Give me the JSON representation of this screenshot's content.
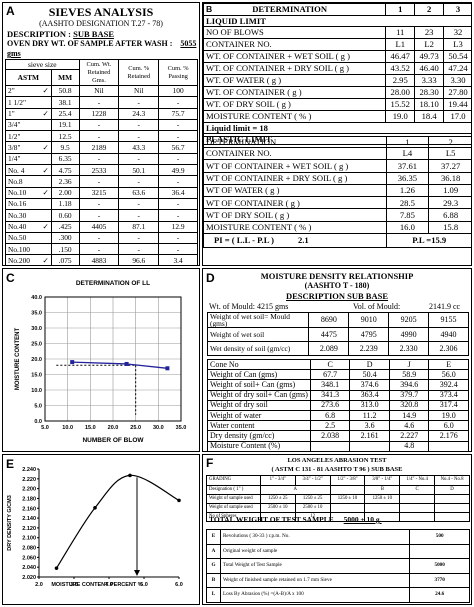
{
  "panel_a": {
    "label": "A",
    "title": "SIEVES ANALYSIS",
    "subtitle": "(AASHTO DESIGNATION T.27 - 78)",
    "description_label": "DESCRIPTION :",
    "description_value": "SUB BASE",
    "oven_label": "OVEN DRY WT. OF SAMPLE AFTER  WASH :",
    "oven_value": "5055",
    "oven_unit": "gms",
    "header_sieve": "sieve size",
    "headers": [
      "ASTM",
      "MM",
      "Cum. Wt. Retained Gms.",
      "Cum. % Retained",
      "Cum. % Passing"
    ],
    "check_mark": "✓",
    "rows": [
      {
        "astm": "2\"",
        "check": true,
        "mm": "50.8",
        "wt": "Nil",
        "ret": "Nil",
        "pass": "100"
      },
      {
        "astm": "1 1/2\"",
        "check": false,
        "mm": "38.1",
        "wt": "-",
        "ret": "-",
        "pass": "-"
      },
      {
        "astm": "1\"",
        "check": true,
        "mm": "25.4",
        "wt": "1228",
        "ret": "24.3",
        "pass": "75.7"
      },
      {
        "astm": "3/4\"",
        "check": false,
        "mm": "19.1",
        "wt": "-",
        "ret": "-",
        "pass": "-"
      },
      {
        "astm": "1/2\"",
        "check": false,
        "mm": "12.5",
        "wt": "-",
        "ret": "-",
        "pass": "-"
      },
      {
        "astm": "3/8\"",
        "check": true,
        "mm": "9.5",
        "wt": "2189",
        "ret": "43.3",
        "pass": "56.7"
      },
      {
        "astm": "1/4\"",
        "check": false,
        "mm": "6.35",
        "wt": "-",
        "ret": "-",
        "pass": "-"
      },
      {
        "astm": "No. 4",
        "check": true,
        "mm": "4.75",
        "wt": "2533",
        "ret": "50.1",
        "pass": "49.9"
      },
      {
        "astm": "No.8",
        "check": false,
        "mm": "2.36",
        "wt": "-",
        "ret": "-",
        "pass": "-"
      },
      {
        "astm": "No.10",
        "check": true,
        "mm": "2.00",
        "wt": "3215",
        "ret": "63.6",
        "pass": "36.4"
      },
      {
        "astm": "No.16",
        "check": false,
        "mm": "1.18",
        "wt": "-",
        "ret": "-",
        "pass": "-"
      },
      {
        "astm": "No.30",
        "check": false,
        "mm": "0.60",
        "wt": "-",
        "ret": "-",
        "pass": "-"
      },
      {
        "astm": "No.40",
        "check": true,
        "mm": ".425",
        "wt": "4405",
        "ret": "87.1",
        "pass": "12.9"
      },
      {
        "astm": "No.50",
        "check": false,
        "mm": ".300",
        "wt": "-",
        "ret": "-",
        "pass": "-"
      },
      {
        "astm": "No.100",
        "check": false,
        "mm": ".150",
        "wt": "-",
        "ret": "-",
        "pass": "-"
      },
      {
        "astm": "No.200",
        "check": true,
        "mm": ".075",
        "wt": "4883",
        "ret": "96.6",
        "pass": "3.4"
      }
    ]
  },
  "panel_b": {
    "label": "B",
    "headers": [
      "DETERMINATION",
      "1",
      "2",
      "3"
    ],
    "liquid_limit_title": "LIQUID LIMIT",
    "ll_rows": [
      {
        "label": "NO OF BLOWS",
        "v": [
          "11",
          "23",
          "32"
        ]
      },
      {
        "label": "CONTAINER NO.",
        "v": [
          "L1",
          "L2",
          "L3"
        ]
      },
      {
        "label": "WT. OF CONTAINER + WET SOIL ( g )",
        "v": [
          "46.47",
          "49.73",
          "50.54"
        ]
      },
      {
        "label": "WT. OF CONTAINER + DRY SOIL  ( g )",
        "v": [
          "43.52",
          "46.40",
          "47.24"
        ]
      },
      {
        "label": "WT. OF WATER                       ( g )",
        "v": [
          "2.95",
          "3.33",
          "3.30"
        ]
      },
      {
        "label": "WT. OF CONTAINER               ( g )",
        "v": [
          "28.00",
          "28.30",
          "27.80"
        ]
      },
      {
        "label": "WT. OF DRY SOIL                ( g )",
        "v": [
          "15.52",
          "18.10",
          "19.44"
        ]
      },
      {
        "label": "MOISTURE CONTENT          ( % )",
        "v": [
          "19.0",
          "18.4",
          "17.0"
        ]
      }
    ],
    "liquid_limit_result": "Liquid limit = 18",
    "plastic_limit_title": "PLASTIC LIMIT",
    "pl_header": "DETERMINATION",
    "pl_cols": [
      "1",
      "2"
    ],
    "pl_rows": [
      {
        "label": "CONTAINER NO.",
        "v": [
          "L4",
          "L5"
        ]
      },
      {
        "label": "WT OF CONTAINER + WET SOIL ( g )",
        "v": [
          "37.61",
          "37.27"
        ]
      },
      {
        "label": "WT OF CONTAINER + DRY SOIL ( g )",
        "v": [
          "36.35",
          "36.18"
        ]
      },
      {
        "label": "WT OF WATER ( g )",
        "v": [
          "1.26",
          "1.09"
        ]
      },
      {
        "label": "WT OF CONTAINER ( g )",
        "v": [
          "28.5",
          "29.3"
        ]
      },
      {
        "label": "WT OF DRY SOIL  ( g )",
        "v": [
          "7.85",
          "6.88"
        ]
      },
      {
        "label": "MOISTURE CONTENT ( % )",
        "v": [
          "16.0",
          "15.8"
        ]
      }
    ],
    "pi_label": "PI = ( L.L  - P.L )",
    "pi_value": "2.1",
    "pl_label": "P.L =15.9"
  },
  "panel_c": {
    "label": "C",
    "title": "DETERMINATION OF LL",
    "chart_data": {
      "type": "line",
      "title": "DETERMINATION OF LL",
      "xlabel": "NUMBER OF BLOW",
      "ylabel": "MOISTURE CONTENT",
      "xlim": [
        5,
        35
      ],
      "ylim": [
        0,
        40
      ],
      "xticks": [
        "5.0",
        "10.0",
        "15.0",
        "20.0",
        "25.0",
        "30.0",
        "35.0"
      ],
      "yticks": [
        "0.0",
        "5.0",
        "10.0",
        "15.0",
        "20.0",
        "25.0",
        "30.0",
        "35.0",
        "40.0"
      ],
      "series": [
        {
          "x": [
            11,
            23,
            32
          ],
          "y": [
            19.0,
            18.4,
            17.0
          ]
        }
      ],
      "reference_x": 25,
      "reference_y": 18
    }
  },
  "panel_d": {
    "label": "D",
    "title": "MOISTURE DENSITY RELATIONSHIP",
    "subtitle": "(AASHTO T - 180)",
    "description": "DESCRIPTION SUB BASE",
    "wt_mould": "Wt. of Mould:   4215 gms",
    "vol_mould": "Vol. of Mould:",
    "vol_value": "2141.9  cc",
    "rows1": [
      {
        "label": "Weight of wet soil= Mould (gms)",
        "v": [
          "8690",
          "9010",
          "9205",
          "9155"
        ]
      },
      {
        "label": "Weight of wet soil",
        "v": [
          "4475",
          "4795",
          "4990",
          "4940"
        ]
      },
      {
        "label": "Wet density of soil (gm/cc)",
        "v": [
          "2.089",
          "2.239",
          "2.330",
          "2.306"
        ]
      }
    ],
    "rows2": [
      {
        "label": "Cone No",
        "v": [
          "C",
          "D",
          "J",
          "E"
        ]
      },
      {
        "label": "Weight of Can (gms)",
        "v": [
          "67.7",
          "50.4",
          "58.9",
          "56.0"
        ]
      },
      {
        "label": "Weight of soil+ Can (gms)",
        "v": [
          "348.1",
          "374.6",
          "394.6",
          "392.4"
        ]
      },
      {
        "label": "Weight of dry soil+ Can (gms)",
        "v": [
          "341.3",
          "363.4",
          "379.7",
          "373.4"
        ]
      },
      {
        "label": "Weight of dry soil",
        "v": [
          "273.6",
          "313.0",
          "320.8",
          "317.4"
        ]
      },
      {
        "label": "Weight of water",
        "v": [
          "6.8",
          "11.2",
          "14.9",
          "19.0"
        ]
      },
      {
        "label": "Water content",
        "v": [
          "2.5",
          "3.6",
          "4.6",
          "6.0"
        ]
      },
      {
        "label": "Dry density (gm/cc)",
        "v": [
          "2.038",
          "2.161",
          "2.227",
          "2.176"
        ]
      },
      {
        "label": "Moisture Content (%)",
        "v": [
          "",
          "",
          "4.8",
          ""
        ]
      }
    ]
  },
  "panel_e": {
    "label": "E",
    "chart_data": {
      "type": "line",
      "xlabel": "MOISTURE CONTENT PERCENT %",
      "ylabel": "DRY DENSITY G/CM3",
      "xlim": [
        2.0,
        6.0
      ],
      "ylim": [
        2.02,
        2.24
      ],
      "xticks": [
        "2.0",
        "3.0",
        "4.0",
        "5.0",
        "6.0"
      ],
      "yticks": [
        "2.020",
        "2.040",
        "2.060",
        "2.080",
        "2.100",
        "2.120",
        "2.140",
        "2.160",
        "2.180",
        "2.200",
        "2.220",
        "2.240"
      ],
      "series": [
        {
          "x": [
            2.5,
            3.6,
            4.6,
            6.0
          ],
          "y": [
            2.038,
            2.161,
            2.227,
            2.176
          ]
        }
      ],
      "optimum_x": 4.8
    }
  },
  "panel_f": {
    "label": "F",
    "title": "LOS ANGELES ABRASION TEST",
    "subtitle": "( ASTM  C  131 - 81 AASHTO T 96 ) SUB BASE",
    "grading_label": "GRADING",
    "grading_cols": [
      "1\" - 3/4\"",
      "3/4\" - 1/2\"",
      "1/2\" - 3/8\"",
      "3/8\" - 1/4\"",
      "1/4\" - No.4",
      "No.4 - No.8"
    ],
    "designation_label": "Designation ( 1\" )",
    "designation_values": [
      "A",
      "",
      "B",
      "C",
      "D"
    ],
    "weight_rows": [
      {
        "label": "Weight of sample used",
        "v": [
          "1250 ± 25",
          "1250 ± 25",
          "1250 ± 10",
          "1250 ± 10",
          "",
          ""
        ]
      },
      {
        "label": "Weight of sample used",
        "v": [
          "2500 ± 10",
          "2500 ± 10",
          "",
          "",
          "",
          ""
        ]
      },
      {
        "label": "No of Spheres",
        "v": [
          "",
          "12",
          "",
          "",
          "",
          ""
        ]
      }
    ],
    "total_label": "TOTAL WEIGHT OF TEST SAMPLE",
    "total_value": "5000 ± 10 g.",
    "rows": [
      {
        "letter": "E",
        "label": "Revolutions  ( 30-33 ) r.p.m.   No.",
        "value": "500"
      },
      {
        "letter": "A",
        "label": "Original weight of sample",
        "value": ""
      },
      {
        "letter": "G",
        "label": "Total Weight of Test Sample",
        "value": "5000"
      },
      {
        "letter": "B",
        "label": "Weight of finished sample retained on 1.7 mm Sieve",
        "value": "3770"
      },
      {
        "letter": "L",
        "label": "Loss By Abrasion (%) =(A-B)/A x 100",
        "value": "24.6"
      }
    ]
  }
}
